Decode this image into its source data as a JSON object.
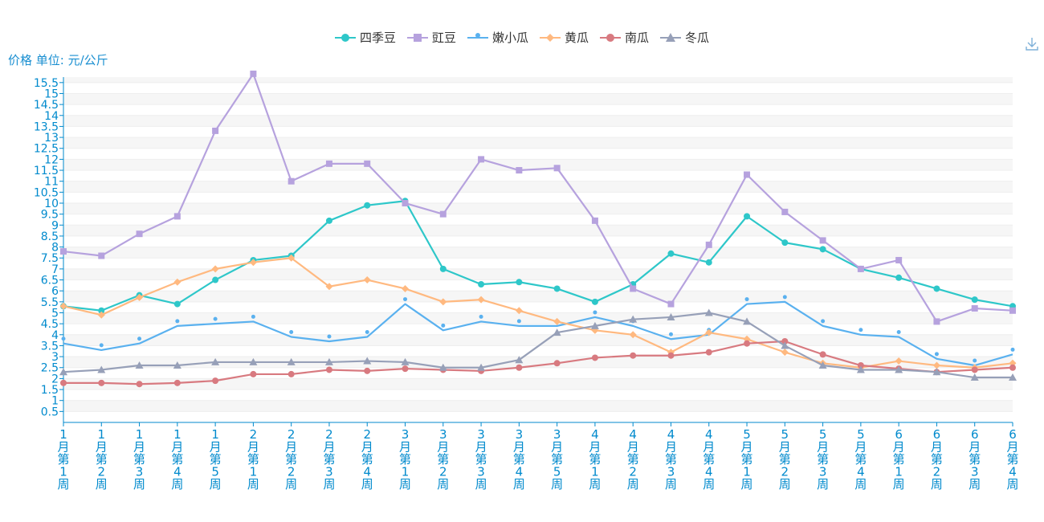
{
  "unit_label": "价格 单位: 元/公斤",
  "chart_data": {
    "type": "line",
    "ylim": [
      0,
      15.75
    ],
    "yticks": [
      "0.5",
      "1",
      "1.5",
      "2",
      "2.5",
      "3",
      "3.5",
      "4",
      "4.5",
      "5",
      "5.5",
      "6",
      "6.5",
      "7",
      "7.5",
      "8",
      "8.5",
      "9",
      "9.5",
      "10",
      "10.5",
      "11",
      "11.5",
      "12",
      "12.5",
      "13",
      "13.5",
      "14",
      "14.5",
      "15",
      "15.5"
    ],
    "categories": [
      "1月第1周",
      "1月第2周",
      "1月第3周",
      "1月第4周",
      "1月第5周",
      "2月第1周",
      "2月第2周",
      "2月第3周",
      "2月第4周",
      "3月第1周",
      "3月第2周",
      "3月第3周",
      "3月第4周",
      "3月第5周",
      "4月第1周",
      "4月第2周",
      "4月第3周",
      "4月第4周",
      "5月第1周",
      "5月第2周",
      "5月第3周",
      "5月第4周",
      "6月第1周",
      "6月第2周",
      "6月第3周",
      "6月第4周"
    ],
    "legend_position": "top",
    "series": [
      {
        "name": "四季豆",
        "color": "#2ec7c9",
        "symbol": "circle",
        "values": [
          5.3,
          5.1,
          5.8,
          5.4,
          6.5,
          7.4,
          7.6,
          9.2,
          9.9,
          10.1,
          7.0,
          6.3,
          6.4,
          6.1,
          5.5,
          6.3,
          7.7,
          7.3,
          9.4,
          8.2,
          7.9,
          7.0,
          6.6,
          6.1,
          5.6,
          5.3
        ]
      },
      {
        "name": "豇豆",
        "color": "#b6a2de",
        "symbol": "rect",
        "values": [
          7.8,
          7.6,
          8.6,
          9.4,
          13.3,
          15.9,
          11.0,
          11.8,
          11.8,
          10.0,
          9.5,
          12.0,
          11.5,
          11.6,
          9.2,
          6.1,
          5.4,
          8.1,
          11.3,
          9.6,
          8.3,
          7.0,
          7.4,
          4.6,
          5.2,
          5.1
        ]
      },
      {
        "name": "嫩小瓜",
        "color": "#5ab1ef",
        "symbol": "pin",
        "values": [
          3.6,
          3.3,
          3.6,
          4.4,
          4.5,
          4.6,
          3.9,
          3.7,
          3.9,
          5.4,
          4.2,
          4.6,
          4.4,
          4.4,
          4.8,
          4.4,
          3.8,
          4.0,
          5.4,
          5.5,
          4.4,
          4.0,
          3.9,
          2.9,
          2.6,
          3.1
        ]
      },
      {
        "name": "黄瓜",
        "color": "#ffb980",
        "symbol": "diamond",
        "values": [
          5.3,
          4.9,
          5.7,
          6.4,
          7.0,
          7.3,
          7.5,
          6.2,
          6.5,
          6.1,
          5.5,
          5.6,
          5.1,
          4.6,
          4.2,
          4.0,
          3.2,
          4.1,
          3.8,
          3.2,
          2.7,
          2.5,
          2.8,
          2.6,
          2.5,
          2.7
        ]
      },
      {
        "name": "南瓜",
        "color": "#d87a80",
        "symbol": "circle",
        "values": [
          1.8,
          1.8,
          1.75,
          1.8,
          1.9,
          2.2,
          2.2,
          2.4,
          2.35,
          2.45,
          2.4,
          2.35,
          2.5,
          2.7,
          2.95,
          3.05,
          3.05,
          3.2,
          3.6,
          3.7,
          3.1,
          2.6,
          2.45,
          2.3,
          2.4,
          2.5
        ]
      },
      {
        "name": "冬瓜",
        "color": "#97a0b8",
        "symbol": "triangle",
        "values": [
          2.3,
          2.4,
          2.6,
          2.6,
          2.75,
          2.75,
          2.75,
          2.75,
          2.8,
          2.75,
          2.5,
          2.5,
          2.85,
          4.1,
          4.4,
          4.7,
          4.8,
          5.0,
          4.6,
          3.5,
          2.6,
          2.4,
          2.4,
          2.3,
          2.05,
          2.05
        ]
      }
    ]
  }
}
